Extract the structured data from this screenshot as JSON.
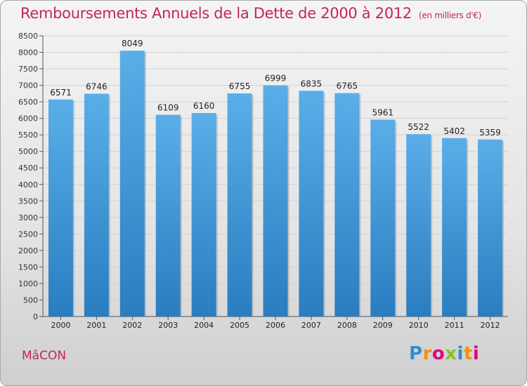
{
  "title": "Remboursements Annuels de la Dette de 2000 à 2012",
  "unit_note": "(en milliers d'€)",
  "city": "MâCON",
  "brand": "Proxiti",
  "colors": {
    "bar_top": "#5aaee8",
    "bar_bottom": "#2a7dc0",
    "title": "#c4245f",
    "axis": "#333333"
  },
  "chart_data": {
    "type": "bar",
    "title": "Remboursements Annuels de la Dette de 2000 à 2012",
    "categories": [
      "2000",
      "2001",
      "2002",
      "2003",
      "2004",
      "2005",
      "2006",
      "2007",
      "2008",
      "2009",
      "2010",
      "2011",
      "2012"
    ],
    "values": [
      6571,
      6746,
      8049,
      6109,
      6160,
      6755,
      6999,
      6835,
      6765,
      5961,
      5522,
      5402,
      5359
    ],
    "ylim": [
      0,
      8500
    ],
    "yticks": [
      0,
      500,
      1000,
      1500,
      2000,
      2500,
      3000,
      3500,
      4000,
      4500,
      5000,
      5500,
      6000,
      6500,
      7000,
      7500,
      8000,
      8500
    ],
    "grid": true
  }
}
